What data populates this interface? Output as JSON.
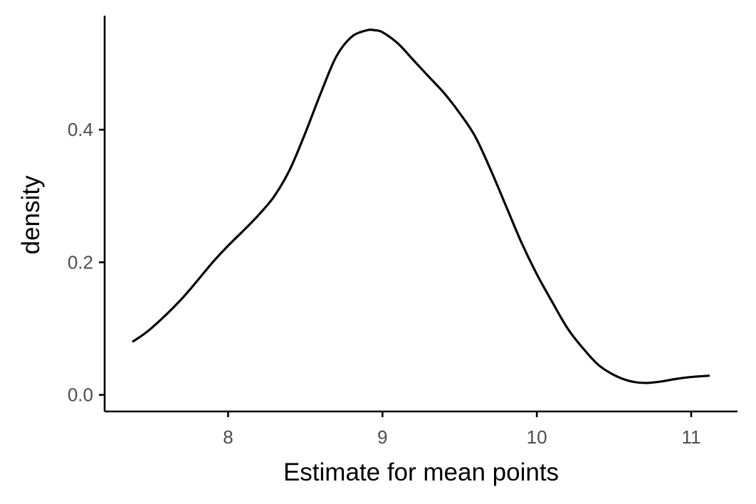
{
  "chart_data": {
    "type": "line",
    "title": "",
    "xlabel": "Estimate for mean points",
    "ylabel": "density",
    "xlim": [
      7.2,
      11.3
    ],
    "ylim": [
      -0.025,
      0.572
    ],
    "x_ticks": [
      8,
      9,
      10,
      11
    ],
    "x_tick_labels": [
      "8",
      "9",
      "10",
      "11"
    ],
    "y_ticks": [
      0.0,
      0.2,
      0.4
    ],
    "y_tick_labels": [
      "0.0",
      "0.2",
      "0.4"
    ],
    "grid": false,
    "legend": "none",
    "line_color": "#000000",
    "series": [
      {
        "x": [
          7.38,
          7.5,
          7.7,
          7.9,
          8.0,
          8.1,
          8.2,
          8.3,
          8.4,
          8.5,
          8.6,
          8.7,
          8.8,
          8.9,
          8.95,
          9.0,
          9.1,
          9.2,
          9.3,
          9.4,
          9.5,
          9.6,
          9.7,
          9.8,
          9.9,
          10.0,
          10.1,
          10.2,
          10.3,
          10.4,
          10.5,
          10.6,
          10.7,
          10.8,
          10.9,
          11.0,
          11.12
        ],
        "y": [
          0.08,
          0.1,
          0.145,
          0.2,
          0.225,
          0.248,
          0.272,
          0.3,
          0.34,
          0.395,
          0.455,
          0.51,
          0.54,
          0.55,
          0.55,
          0.547,
          0.53,
          0.505,
          0.48,
          0.455,
          0.425,
          0.39,
          0.34,
          0.285,
          0.23,
          0.182,
          0.14,
          0.1,
          0.07,
          0.045,
          0.03,
          0.021,
          0.018,
          0.02,
          0.024,
          0.027,
          0.029
        ]
      }
    ]
  }
}
